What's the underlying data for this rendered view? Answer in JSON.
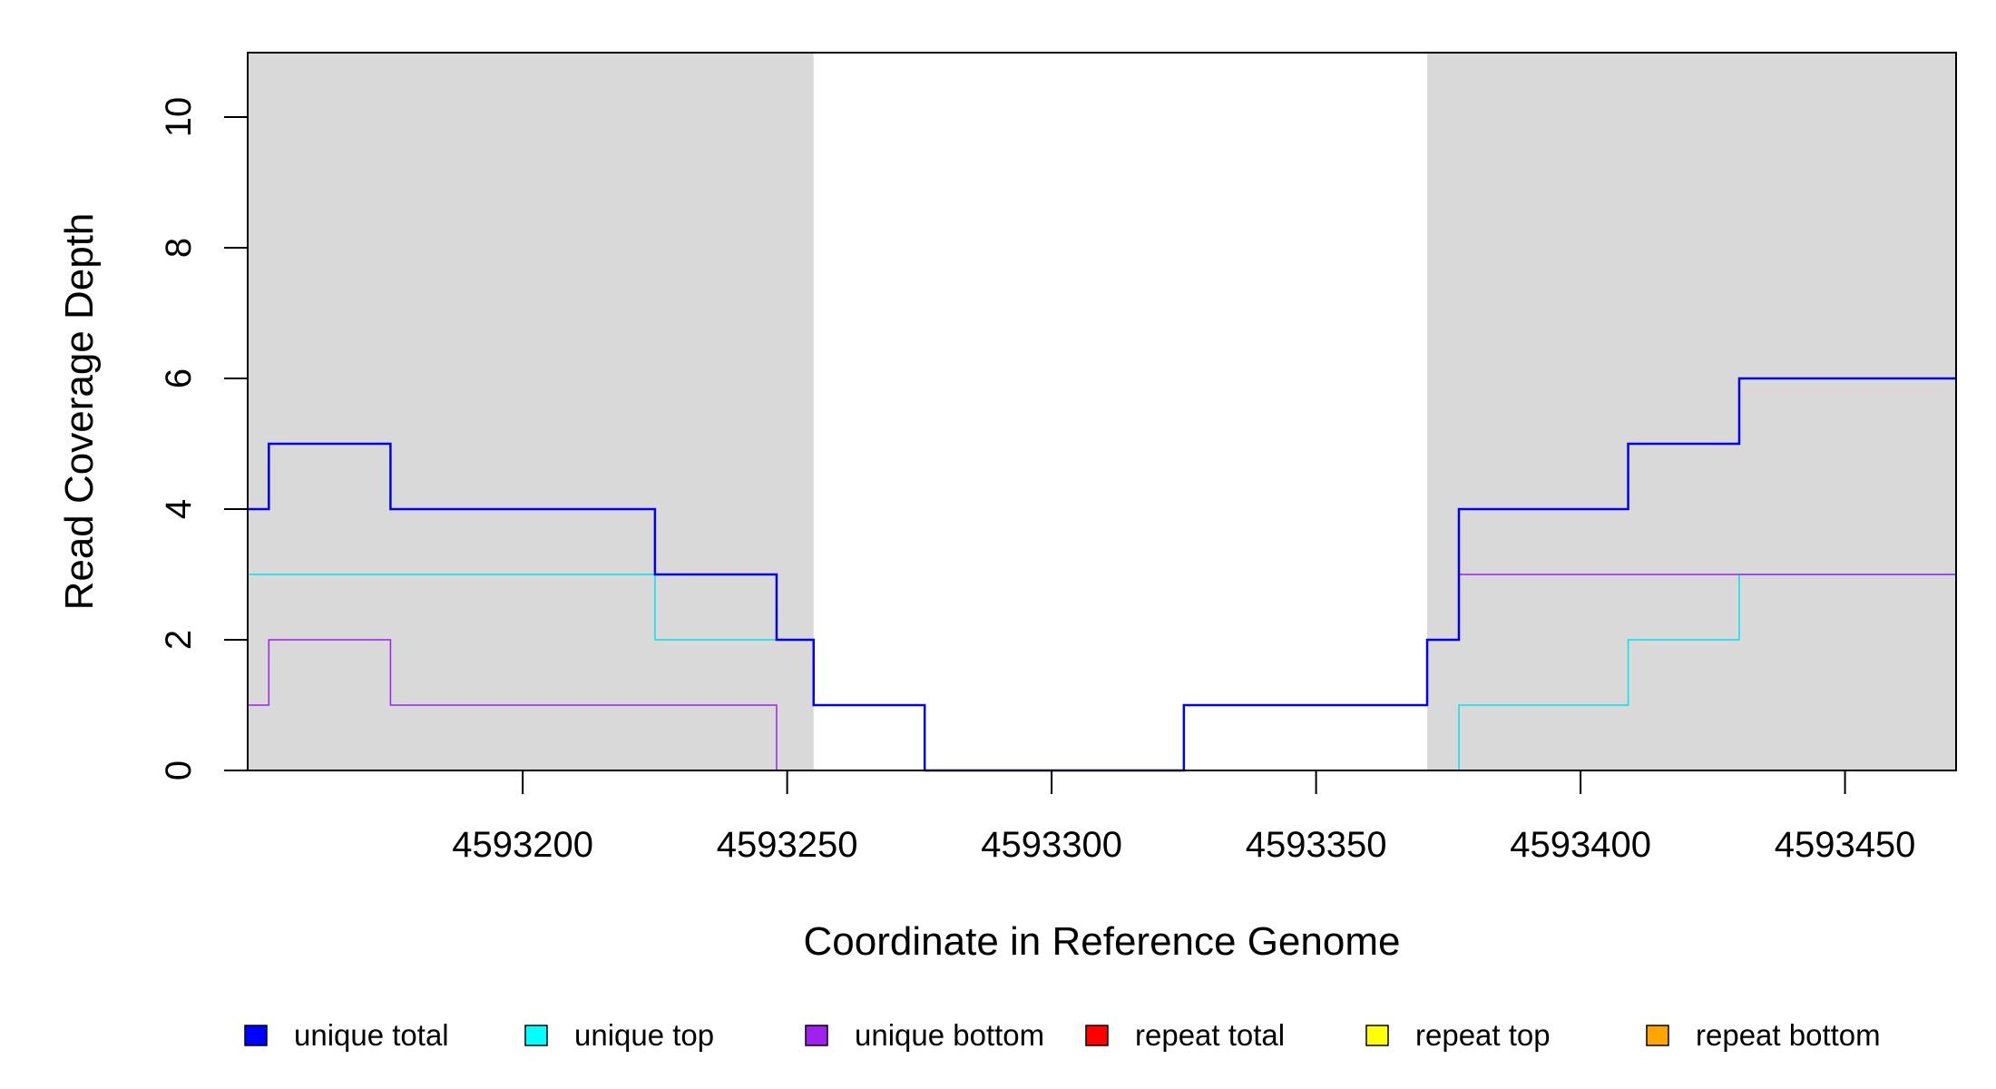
{
  "chart_data": {
    "type": "line",
    "step": true,
    "xlabel": "Coordinate in Reference Genome",
    "ylabel": "Read Coverage Depth",
    "xlim": [
      4593148,
      4593471
    ],
    "ylim": [
      0,
      11
    ],
    "x_ticks": [
      4593200,
      4593250,
      4593300,
      4593350,
      4593400,
      4593450
    ],
    "y_ticks": [
      0,
      2,
      4,
      6,
      8,
      10
    ],
    "grid": false,
    "shaded_regions": [
      {
        "x0": 4593148,
        "x1": 4593255,
        "color": "#d9d9d9"
      },
      {
        "x0": 4593371,
        "x1": 4593471,
        "color": "#d9d9d9"
      }
    ],
    "series": [
      {
        "name": "repeat total",
        "color": "#ff0000",
        "width": 2,
        "points": [
          [
            4593148,
            0
          ],
          [
            4593471,
            0
          ]
        ]
      },
      {
        "name": "repeat top",
        "color": "#ffff00",
        "width": 2,
        "points": [
          [
            4593148,
            0
          ],
          [
            4593471,
            0
          ]
        ]
      },
      {
        "name": "repeat bottom",
        "color": "#ffa500",
        "width": 2,
        "points": [
          [
            4593148,
            0
          ],
          [
            4593471,
            0
          ]
        ]
      },
      {
        "name": "unique top",
        "color": "#00e5ee",
        "width": 1.5,
        "points": [
          [
            4593148,
            3
          ],
          [
            4593225,
            3
          ],
          [
            4593225,
            2
          ],
          [
            4593255,
            2
          ],
          [
            4593255,
            1
          ],
          [
            4593276,
            1
          ],
          [
            4593276,
            0
          ],
          [
            4593377,
            0
          ],
          [
            4593377,
            1
          ],
          [
            4593409,
            1
          ],
          [
            4593409,
            2
          ],
          [
            4593430,
            2
          ],
          [
            4593430,
            3
          ],
          [
            4593471,
            3
          ]
        ]
      },
      {
        "name": "unique bottom",
        "color": "#a020f0",
        "width": 1.5,
        "points": [
          [
            4593148,
            1
          ],
          [
            4593152,
            1
          ],
          [
            4593152,
            2
          ],
          [
            4593175,
            2
          ],
          [
            4593175,
            1
          ],
          [
            4593248,
            1
          ],
          [
            4593248,
            0
          ],
          [
            4593325,
            0
          ],
          [
            4593325,
            1
          ],
          [
            4593371,
            1
          ],
          [
            4593371,
            2
          ],
          [
            4593377,
            2
          ],
          [
            4593377,
            3
          ],
          [
            4593471,
            3
          ]
        ]
      },
      {
        "name": "unique total",
        "color": "#0000ee",
        "width": 2.5,
        "points": [
          [
            4593148,
            4
          ],
          [
            4593152,
            4
          ],
          [
            4593152,
            5
          ],
          [
            4593175,
            5
          ],
          [
            4593175,
            4
          ],
          [
            4593225,
            4
          ],
          [
            4593225,
            3
          ],
          [
            4593248,
            3
          ],
          [
            4593248,
            2
          ],
          [
            4593255,
            2
          ],
          [
            4593255,
            1
          ],
          [
            4593276,
            1
          ],
          [
            4593276,
            0
          ],
          [
            4593325,
            0
          ],
          [
            4593325,
            1
          ],
          [
            4593371,
            1
          ],
          [
            4593371,
            2
          ],
          [
            4593377,
            2
          ],
          [
            4593377,
            4
          ],
          [
            4593409,
            4
          ],
          [
            4593409,
            5
          ],
          [
            4593430,
            5
          ],
          [
            4593430,
            6
          ],
          [
            4593471,
            6
          ]
        ]
      }
    ],
    "legend": {
      "placement": "bottom",
      "items": [
        {
          "label": "unique total",
          "color": "#0000ff"
        },
        {
          "label": "unique top",
          "color": "#00ffff"
        },
        {
          "label": "unique bottom",
          "color": "#a020f0"
        },
        {
          "label": "repeat total",
          "color": "#ff0000"
        },
        {
          "label": "repeat top",
          "color": "#ffff00"
        },
        {
          "label": "repeat bottom",
          "color": "#ffa500"
        }
      ]
    }
  }
}
